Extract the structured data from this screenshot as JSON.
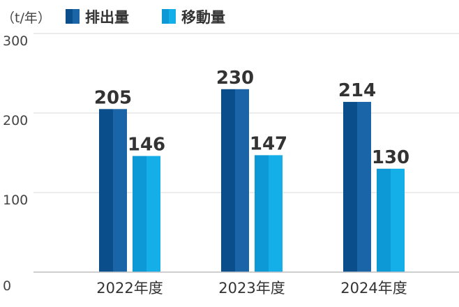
{
  "chart_data": {
    "type": "bar",
    "unit_label": "（t/年）",
    "categories": [
      "2022年度",
      "2023年度",
      "2024年度"
    ],
    "series": [
      {
        "name": "排出量",
        "values": [
          205,
          230,
          214
        ],
        "color": "#0a4f8c",
        "color_light": "#1a64a8"
      },
      {
        "name": "移動量",
        "values": [
          146,
          147,
          130
        ],
        "color": "#0d98d6",
        "color_light": "#14aee8"
      }
    ],
    "yticks": [
      0,
      100,
      200,
      300
    ],
    "ylim": [
      0,
      300
    ],
    "grid": true,
    "legend_position": "top-left"
  }
}
